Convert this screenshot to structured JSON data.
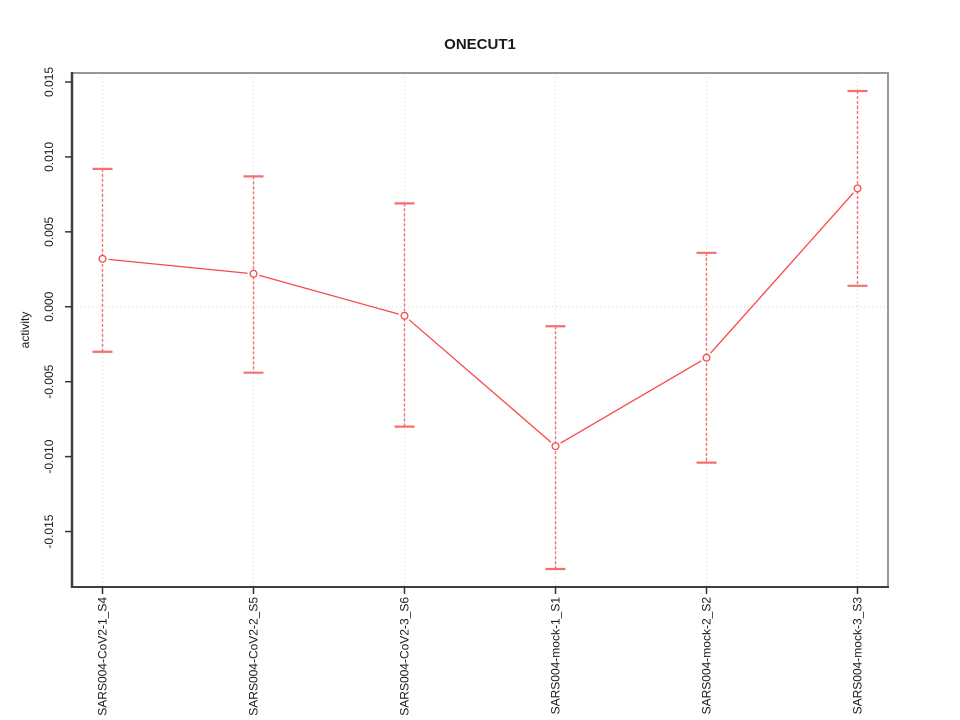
{
  "chart_data": {
    "type": "line",
    "title": "ONECUT1",
    "xlabel": "",
    "ylabel": "activity",
    "categories": [
      "SARS004-CoV2-1_S4",
      "SARS004-CoV2-2_S5",
      "SARS004-CoV2-3_S6",
      "SARS004-mock-1_S1",
      "SARS004-mock-2_S2",
      "SARS004-mock-3_S3"
    ],
    "points": [
      {
        "category": "SARS004-CoV2-1_S4",
        "value": 0.0032,
        "ci_low": -0.003,
        "ci_high": 0.0092
      },
      {
        "category": "SARS004-CoV2-2_S5",
        "value": 0.0022,
        "ci_low": -0.0044,
        "ci_high": 0.0087
      },
      {
        "category": "SARS004-CoV2-3_S6",
        "value": -0.0006,
        "ci_low": -0.008,
        "ci_high": 0.0069
      },
      {
        "category": "SARS004-mock-1_S1",
        "value": -0.0093,
        "ci_low": -0.0175,
        "ci_high": -0.0013
      },
      {
        "category": "SARS004-mock-2_S2",
        "value": -0.0034,
        "ci_low": -0.0104,
        "ci_high": 0.0036
      },
      {
        "category": "SARS004-mock-3_S3",
        "value": 0.0079,
        "ci_low": 0.0014,
        "ci_high": 0.0144
      }
    ],
    "ytick_values": [
      0.015,
      0.01,
      0.005,
      0.0,
      -0.005,
      -0.01,
      -0.015
    ],
    "ytick_labels": [
      "0.015",
      "0.010",
      "0.005",
      "0.000",
      "-0.005",
      "-0.010",
      "-0.015"
    ],
    "ylim": [
      -0.0187,
      0.0156
    ],
    "grid": {
      "vertical_at_categories": true,
      "horizontal_at_zero": true,
      "style": "dotted"
    },
    "legend": "none",
    "marker": "open-circle",
    "colors": {
      "series": "#f84848",
      "error_bar": "#f37070",
      "grid": "#d6d6d6",
      "box": "#989898",
      "axis": "#3f3f3f",
      "tick": "#333333",
      "text": "#1a1a1a"
    }
  }
}
